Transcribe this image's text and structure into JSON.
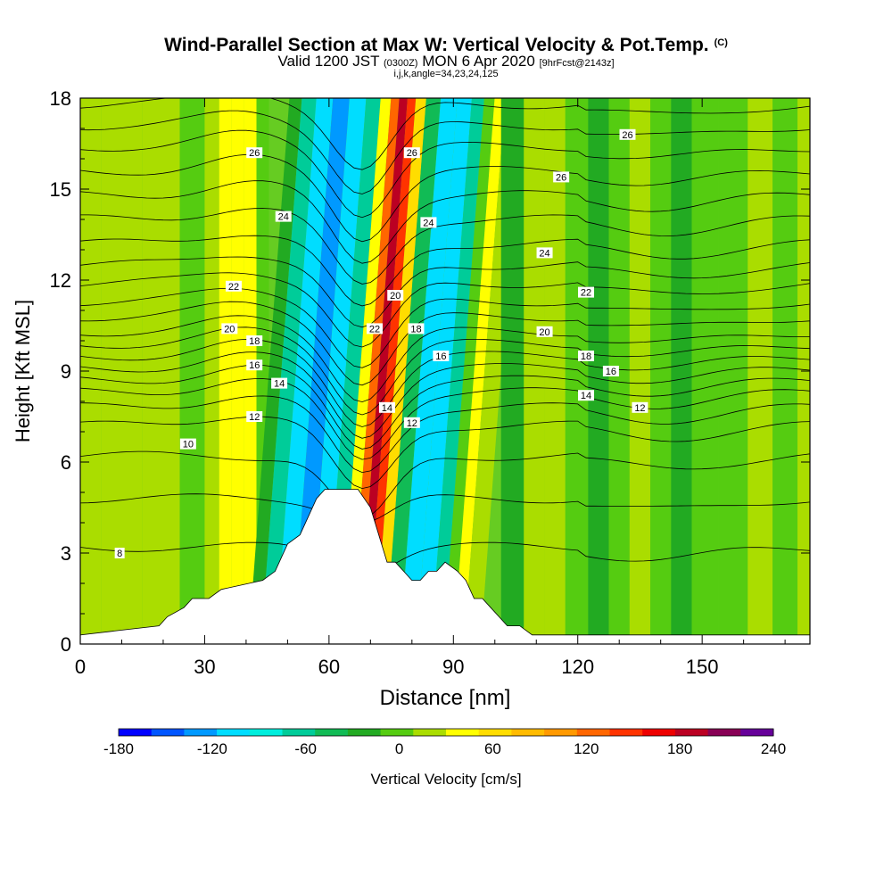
{
  "title": {
    "main": "Wind-Parallel Section at Max W: Vertical Velocity & Pot.Temp.",
    "copyright": "(C)",
    "valid_prefix": "Valid 1200 JST",
    "valid_zulu": "(0300Z)",
    "valid_date": "MON 6 Apr 2020",
    "forecast": "[9hrFcst@2143z]",
    "params": "i,j,k,angle=34,23,24,125"
  },
  "chart_data": {
    "type": "heatmap",
    "xlabel": "Distance [nm]",
    "ylabel": "Height [Kft MSL]",
    "xlim": [
      0,
      176
    ],
    "ylim": [
      0,
      18
    ],
    "xticks": [
      "0",
      "30",
      "60",
      "90",
      "120",
      "150"
    ],
    "xtick_values": [
      0,
      30,
      60,
      90,
      120,
      150
    ],
    "yticks": [
      "0",
      "3",
      "6",
      "9",
      "12",
      "15",
      "18"
    ],
    "ytick_values": [
      0,
      3,
      6,
      9,
      12,
      15,
      18
    ],
    "colorbar": {
      "title": "Vertical Velocity [cm/s]",
      "ticks": [
        "-180",
        "-120",
        "-60",
        "0",
        "60",
        "120",
        "180",
        "240"
      ],
      "tick_values": [
        -180,
        -120,
        -60,
        0,
        60,
        120,
        180,
        240
      ],
      "range": [
        -180,
        240
      ],
      "colors": [
        "#0000ff",
        "#0055ff",
        "#0099ff",
        "#00ddff",
        "#00eedd",
        "#00cc99",
        "#11bb55",
        "#22aa22",
        "#55cc11",
        "#aadd00",
        "#ffff00",
        "#ffdd00",
        "#ffbb00",
        "#ff9900",
        "#ff6600",
        "#ff3300",
        "#ee0000",
        "#bb0022",
        "#880055",
        "#660099"
      ]
    },
    "terrain_profile": {
      "x": [
        0,
        19,
        21,
        25,
        27,
        31,
        34,
        44,
        47,
        50,
        53,
        55,
        57,
        59,
        62,
        67,
        70,
        72,
        74,
        76,
        78,
        80,
        82,
        84,
        86,
        88,
        91,
        93,
        95,
        97,
        99,
        101,
        103,
        106,
        109,
        110,
        176
      ],
      "height": [
        0.3,
        0.6,
        0.9,
        1.2,
        1.5,
        1.5,
        1.8,
        2.1,
        2.4,
        3.3,
        3.6,
        4.2,
        4.8,
        5.1,
        5.1,
        5.1,
        4.5,
        3.6,
        2.7,
        2.7,
        2.4,
        2.1,
        2.1,
        2.4,
        2.4,
        2.7,
        2.4,
        2.1,
        1.5,
        1.5,
        1.2,
        0.9,
        0.6,
        0.6,
        0.3,
        0.3,
        0.3
      ]
    },
    "vertical_velocity_columns": [
      {
        "x": 0,
        "w": 20
      },
      {
        "x": 10,
        "w": 15
      },
      {
        "x": 20,
        "w": 10
      },
      {
        "x": 28,
        "w": -10
      },
      {
        "x": 32,
        "w": 10
      },
      {
        "x": 35,
        "w": 35
      },
      {
        "x": 38,
        "w": 45
      },
      {
        "x": 41,
        "w": 30
      },
      {
        "x": 44,
        "w": 0
      },
      {
        "x": 47,
        "w": -25
      },
      {
        "x": 50,
        "w": -60
      },
      {
        "x": 54,
        "w": -105
      },
      {
        "x": 58,
        "w": -120
      },
      {
        "x": 62,
        "w": -105
      },
      {
        "x": 66,
        "w": -60
      },
      {
        "x": 69,
        "w": 40
      },
      {
        "x": 71,
        "w": 120
      },
      {
        "x": 73,
        "w": 185
      },
      {
        "x": 75,
        "w": 150
      },
      {
        "x": 77,
        "w": 60
      },
      {
        "x": 80,
        "w": -50
      },
      {
        "x": 84,
        "w": -110
      },
      {
        "x": 88,
        "w": -100
      },
      {
        "x": 91,
        "w": -60
      },
      {
        "x": 94,
        "w": 0
      },
      {
        "x": 96,
        "w": 45
      },
      {
        "x": 99,
        "w": 20
      },
      {
        "x": 104,
        "w": -15
      },
      {
        "x": 110,
        "w": 10
      },
      {
        "x": 114,
        "w": 25
      },
      {
        "x": 120,
        "w": 0
      },
      {
        "x": 125,
        "w": -15
      },
      {
        "x": 130,
        "w": 0
      },
      {
        "x": 135,
        "w": 10
      },
      {
        "x": 140,
        "w": 0
      },
      {
        "x": 145,
        "w": -20
      },
      {
        "x": 150,
        "w": -5
      },
      {
        "x": 158,
        "w": 0
      },
      {
        "x": 164,
        "w": 15
      },
      {
        "x": 170,
        "w": 0
      },
      {
        "x": 176,
        "w": 10
      }
    ],
    "theta_contour_labels": [
      {
        "label": "8",
        "x": 9.5,
        "y": 3.0
      },
      {
        "label": "10",
        "x": 26,
        "y": 6.6
      },
      {
        "label": "12",
        "x": 42,
        "y": 7.5
      },
      {
        "label": "14",
        "x": 48,
        "y": 8.6
      },
      {
        "label": "16",
        "x": 42,
        "y": 9.2
      },
      {
        "label": "18",
        "x": 42,
        "y": 10.0
      },
      {
        "label": "20",
        "x": 36,
        "y": 10.4
      },
      {
        "label": "22",
        "x": 37,
        "y": 11.8
      },
      {
        "label": "24",
        "x": 49,
        "y": 14.1
      },
      {
        "label": "26",
        "x": 42,
        "y": 16.2
      },
      {
        "label": "26",
        "x": 80,
        "y": 16.2
      },
      {
        "label": "24",
        "x": 84,
        "y": 13.9
      },
      {
        "label": "20",
        "x": 76,
        "y": 11.5
      },
      {
        "label": "22",
        "x": 71,
        "y": 10.4
      },
      {
        "label": "18",
        "x": 81,
        "y": 10.4
      },
      {
        "label": "16",
        "x": 87,
        "y": 9.5
      },
      {
        "label": "14",
        "x": 74,
        "y": 7.8
      },
      {
        "label": "12",
        "x": 80,
        "y": 7.3
      },
      {
        "label": "26",
        "x": 132,
        "y": 16.8
      },
      {
        "label": "26",
        "x": 116,
        "y": 15.4
      },
      {
        "label": "24",
        "x": 112,
        "y": 12.9
      },
      {
        "label": "22",
        "x": 122,
        "y": 11.6
      },
      {
        "label": "20",
        "x": 112,
        "y": 10.3
      },
      {
        "label": "18",
        "x": 122,
        "y": 9.5
      },
      {
        "label": "16",
        "x": 128,
        "y": 9.0
      },
      {
        "label": "14",
        "x": 122,
        "y": 8.2
      },
      {
        "label": "12",
        "x": 135,
        "y": 7.8
      }
    ]
  }
}
